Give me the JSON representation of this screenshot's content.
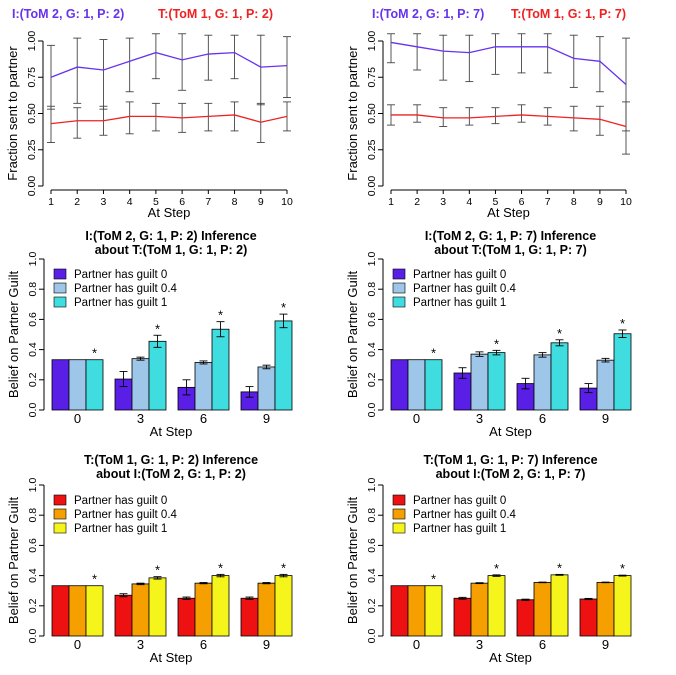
{
  "chart_data": [
    {
      "type": "line",
      "title_parts": [
        {
          "text": "I:(ToM 2, G: 1, P: 2)",
          "color": "#6633ee"
        },
        {
          "text": "T:(ToM 1, G: 1, P: 2)",
          "color": "#ee2222"
        }
      ],
      "xlabel": "At Step",
      "ylabel": "Fraction sent to partner",
      "x": [
        1,
        2,
        3,
        4,
        5,
        6,
        7,
        8,
        9,
        10
      ],
      "x_ticks": [
        "1",
        "2",
        "3",
        "4",
        "5",
        "6",
        "7",
        "8",
        "9",
        "10"
      ],
      "y_ticks": [
        "0.00",
        "0.25",
        "0.50",
        "0.75",
        "1.00"
      ],
      "ylim": [
        0,
        1
      ],
      "series": [
        {
          "color": "#6633ee",
          "values": [
            0.75,
            0.82,
            0.8,
            0.86,
            0.92,
            0.87,
            0.91,
            0.92,
            0.82,
            0.83
          ],
          "err": [
            [
              0.53,
              0.97
            ],
            [
              0.57,
              1.02
            ],
            [
              0.53,
              1.01
            ],
            [
              0.65,
              1.02
            ],
            [
              0.74,
              1.05
            ],
            [
              0.66,
              1.05
            ],
            [
              0.73,
              1.04
            ],
            [
              0.74,
              1.04
            ],
            [
              0.56,
              1.04
            ],
            [
              0.61,
              1.03
            ]
          ]
        },
        {
          "color": "#ee2222",
          "values": [
            0.43,
            0.45,
            0.45,
            0.48,
            0.48,
            0.47,
            0.48,
            0.49,
            0.44,
            0.48
          ],
          "err": [
            [
              0.3,
              0.55
            ],
            [
              0.33,
              0.54
            ],
            [
              0.35,
              0.55
            ],
            [
              0.36,
              0.58
            ],
            [
              0.38,
              0.57
            ],
            [
              0.37,
              0.57
            ],
            [
              0.38,
              0.57
            ],
            [
              0.38,
              0.58
            ],
            [
              0.3,
              0.57
            ],
            [
              0.38,
              0.58
            ]
          ]
        }
      ]
    },
    {
      "type": "line",
      "title_parts": [
        {
          "text": "I:(ToM 2, G: 1, P: 7)",
          "color": "#6633ee"
        },
        {
          "text": "T:(ToM 1, G: 1, P: 7)",
          "color": "#ee2222"
        }
      ],
      "xlabel": "At Step",
      "ylabel": "Fraction sent to partner",
      "x": [
        1,
        2,
        3,
        4,
        5,
        6,
        7,
        8,
        9,
        10
      ],
      "x_ticks": [
        "1",
        "2",
        "3",
        "4",
        "5",
        "6",
        "7",
        "8",
        "9",
        "10"
      ],
      "y_ticks": [
        "0.00",
        "0.25",
        "0.50",
        "0.75",
        "1.00"
      ],
      "ylim": [
        0,
        1
      ],
      "series": [
        {
          "color": "#6633ee",
          "values": [
            0.99,
            0.96,
            0.93,
            0.92,
            0.96,
            0.96,
            0.96,
            0.88,
            0.86,
            0.7
          ],
          "err": [
            [
              0.85,
              1.05
            ],
            [
              0.8,
              1.05
            ],
            [
              0.73,
              1.04
            ],
            [
              0.72,
              1.04
            ],
            [
              0.77,
              1.05
            ],
            [
              0.78,
              1.05
            ],
            [
              0.78,
              1.05
            ],
            [
              0.68,
              1.04
            ],
            [
              0.65,
              1.03
            ],
            [
              0.38,
              1.02
            ]
          ]
        },
        {
          "color": "#ee2222",
          "values": [
            0.49,
            0.49,
            0.47,
            0.47,
            0.48,
            0.49,
            0.48,
            0.47,
            0.46,
            0.41
          ],
          "err": [
            [
              0.42,
              0.56
            ],
            [
              0.44,
              0.56
            ],
            [
              0.41,
              0.54
            ],
            [
              0.42,
              0.54
            ],
            [
              0.43,
              0.54
            ],
            [
              0.44,
              0.56
            ],
            [
              0.42,
              0.54
            ],
            [
              0.38,
              0.55
            ],
            [
              0.35,
              0.55
            ],
            [
              0.22,
              0.58
            ]
          ]
        }
      ]
    },
    {
      "type": "bar",
      "title": [
        "I:(ToM 2, G: 1, P: 2) Inference",
        "about T:(ToM 1, G: 1, P: 2)"
      ],
      "xlabel": "At Step",
      "ylabel": "Belief on Partner Guilt",
      "categories": [
        "0",
        "3",
        "6",
        "9"
      ],
      "y_ticks": [
        "0.0",
        "0.2",
        "0.4",
        "0.6",
        "0.8",
        "1.0"
      ],
      "ylim": [
        0,
        1
      ],
      "legend_position": "top-left",
      "series": [
        {
          "name": "Partner has guilt 0",
          "color": "#5a1fe6",
          "values": [
            0.333,
            0.205,
            0.15,
            0.12
          ],
          "err": [
            0,
            0.05,
            0.05,
            0.035
          ]
        },
        {
          "name": "Partner has guilt 0.4",
          "color": "#9ec6e8",
          "values": [
            0.333,
            0.34,
            0.315,
            0.285
          ],
          "err": [
            0,
            0.01,
            0.01,
            0.012
          ]
        },
        {
          "name": "Partner has guilt 1",
          "color": "#3fdde0",
          "values": [
            0.333,
            0.455,
            0.535,
            0.59
          ],
          "err": [
            0,
            0.04,
            0.05,
            0.045
          ]
        }
      ],
      "stars": [
        "*",
        "*",
        "*",
        "*"
      ]
    },
    {
      "type": "bar",
      "title": [
        "I:(ToM 2, G: 1, P: 7) Inference",
        "about T:(ToM 1, G: 1, P: 7)"
      ],
      "xlabel": "At Step",
      "ylabel": "Belief on Partner Guilt",
      "categories": [
        "0",
        "3",
        "6",
        "9"
      ],
      "y_ticks": [
        "0.0",
        "0.2",
        "0.4",
        "0.6",
        "0.8",
        "1.0"
      ],
      "ylim": [
        0,
        1
      ],
      "legend_position": "top-left",
      "series": [
        {
          "name": "Partner has guilt 0",
          "color": "#5a1fe6",
          "values": [
            0.333,
            0.245,
            0.175,
            0.145
          ],
          "err": [
            0,
            0.035,
            0.035,
            0.03
          ]
        },
        {
          "name": "Partner has guilt 0.4",
          "color": "#9ec6e8",
          "values": [
            0.333,
            0.37,
            0.365,
            0.33
          ],
          "err": [
            0,
            0.015,
            0.015,
            0.012
          ]
        },
        {
          "name": "Partner has guilt 1",
          "color": "#3fdde0",
          "values": [
            0.333,
            0.38,
            0.445,
            0.505
          ],
          "err": [
            0,
            0.015,
            0.02,
            0.025
          ]
        }
      ],
      "stars": [
        "*",
        "*",
        "*",
        "*"
      ]
    },
    {
      "type": "bar",
      "title": [
        "T:(ToM 1, G: 1, P: 2) Inference",
        "about I:(ToM 2, G: 1, P: 2)"
      ],
      "xlabel": "At Step",
      "ylabel": "Belief on Partner Guilt",
      "categories": [
        "0",
        "3",
        "6",
        "9"
      ],
      "y_ticks": [
        "0.0",
        "0.2",
        "0.4",
        "0.6",
        "0.8",
        "1.0"
      ],
      "ylim": [
        0,
        1
      ],
      "legend_position": "top-left",
      "series": [
        {
          "name": "Partner has guilt 0",
          "color": "#ee1111",
          "values": [
            0.333,
            0.27,
            0.25,
            0.25
          ],
          "err": [
            0,
            0.01,
            0.008,
            0.008
          ]
        },
        {
          "name": "Partner has guilt 0.4",
          "color": "#f5a000",
          "values": [
            0.333,
            0.345,
            0.35,
            0.35
          ],
          "err": [
            0,
            0.005,
            0.004,
            0.004
          ]
        },
        {
          "name": "Partner has guilt 1",
          "color": "#f5f51c",
          "values": [
            0.333,
            0.385,
            0.4,
            0.4
          ],
          "err": [
            0,
            0.008,
            0.008,
            0.008
          ]
        }
      ],
      "stars": [
        "*",
        "*",
        "*",
        "*"
      ]
    },
    {
      "type": "bar",
      "title": [
        "T:(ToM 1, G: 1, P: 7) Inference",
        "about I:(ToM 2, G: 1, P: 7)"
      ],
      "xlabel": "At Step",
      "ylabel": "Belief on Partner Guilt",
      "categories": [
        "0",
        "3",
        "6",
        "9"
      ],
      "y_ticks": [
        "0.0",
        "0.2",
        "0.4",
        "0.6",
        "0.8",
        "1.0"
      ],
      "ylim": [
        0,
        1
      ],
      "legend_position": "top-left",
      "series": [
        {
          "name": "Partner has guilt 0",
          "color": "#ee1111",
          "values": [
            0.333,
            0.25,
            0.24,
            0.245
          ],
          "err": [
            0,
            0.006,
            0.004,
            0.004
          ]
        },
        {
          "name": "Partner has guilt 0.4",
          "color": "#f5a000",
          "values": [
            0.333,
            0.35,
            0.355,
            0.355
          ],
          "err": [
            0,
            0.003,
            0.002,
            0.002
          ]
        },
        {
          "name": "Partner has guilt 1",
          "color": "#f5f51c",
          "values": [
            0.333,
            0.4,
            0.405,
            0.4
          ],
          "err": [
            0,
            0.005,
            0.003,
            0.003
          ]
        }
      ],
      "stars": [
        "*",
        "*",
        "*",
        "*"
      ]
    }
  ]
}
